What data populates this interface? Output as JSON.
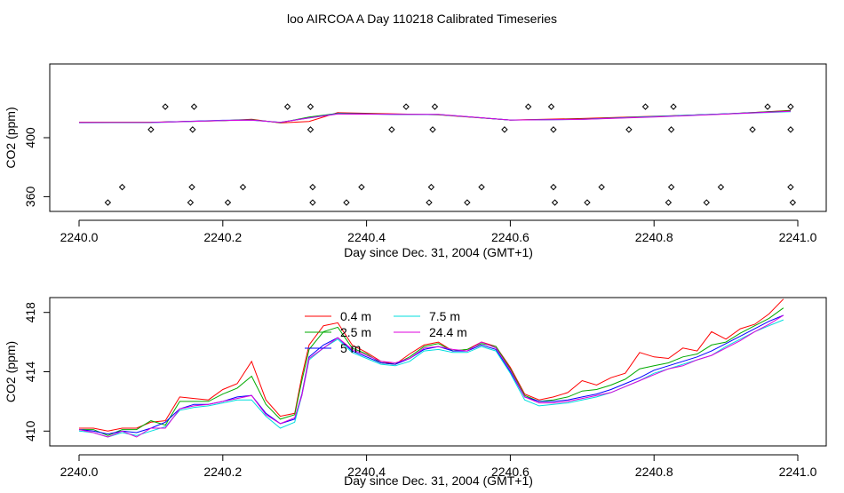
{
  "title": "loo AIRCOA A  Day 110218  Calibrated Timeseries",
  "series_colors": {
    "0.4 m": "#ff0000",
    "2.5 m": "#00aa00",
    "5 m": "#0000ff",
    "7.5 m": "#00dddd",
    "24.4 m": "#dd00dd"
  },
  "chart_data": [
    {
      "type": "line",
      "panel": "top",
      "xlabel": "Day since Dec. 31, 2004 (GMT+1)",
      "ylabel": "CO2 (ppm)",
      "xlim": [
        2240.0,
        2241.0
      ],
      "ylim": [
        350,
        450
      ],
      "x_ticks": [
        2240.0,
        2240.2,
        2240.4,
        2240.6,
        2240.8,
        2241.0
      ],
      "x_tick_labels": [
        "2240.0",
        "2240.2",
        "2240.4",
        "2240.6",
        "2240.8",
        "2241.0"
      ],
      "y_ticks": [
        360,
        400
      ],
      "y_tick_labels": [
        "360",
        "400"
      ],
      "grid": false,
      "series": [
        {
          "name": "0.4 m",
          "x": [
            2240.0,
            2240.1,
            2240.2,
            2240.24,
            2240.28,
            2240.32,
            2240.36,
            2240.45,
            2240.5,
            2240.6,
            2240.7,
            2240.8,
            2240.9,
            2240.99
          ],
          "y": [
            410.5,
            410.5,
            411.5,
            412.5,
            410.0,
            411.0,
            417.0,
            416.0,
            415.5,
            412.0,
            413.0,
            414.5,
            416.0,
            418.5
          ]
        },
        {
          "name": "2.5 m",
          "x": [
            2240.0,
            2240.1,
            2240.2,
            2240.24,
            2240.28,
            2240.32,
            2240.36,
            2240.45,
            2240.5,
            2240.6,
            2240.7,
            2240.8,
            2240.9,
            2240.99
          ],
          "y": [
            410.3,
            410.4,
            411.6,
            412.2,
            410.2,
            414.0,
            416.5,
            415.8,
            415.6,
            412.0,
            412.6,
            414.4,
            416.2,
            418.3
          ]
        },
        {
          "name": "5 m",
          "x": [
            2240.0,
            2240.1,
            2240.2,
            2240.24,
            2240.28,
            2240.32,
            2240.36,
            2240.45,
            2240.5,
            2240.6,
            2240.7,
            2240.8,
            2240.9,
            2240.99
          ],
          "y": [
            410.2,
            410.3,
            411.8,
            412.0,
            410.4,
            413.5,
            416.3,
            415.7,
            415.7,
            412.0,
            412.5,
            414.3,
            416.2,
            417.9
          ]
        },
        {
          "name": "7.5 m",
          "x": [
            2240.0,
            2240.1,
            2240.2,
            2240.24,
            2240.28,
            2240.32,
            2240.36,
            2240.45,
            2240.5,
            2240.6,
            2240.7,
            2240.8,
            2240.9,
            2240.99
          ],
          "y": [
            410.2,
            410.2,
            411.7,
            411.8,
            410.5,
            413.3,
            416.2,
            415.7,
            415.7,
            412.0,
            412.4,
            414.2,
            416.1,
            417.6
          ]
        },
        {
          "name": "24.4 m",
          "x": [
            2240.0,
            2240.1,
            2240.2,
            2240.24,
            2240.28,
            2240.32,
            2240.36,
            2240.45,
            2240.5,
            2240.6,
            2240.7,
            2240.8,
            2240.9,
            2240.99
          ],
          "y": [
            410.3,
            410.3,
            411.6,
            411.9,
            410.4,
            413.4,
            416.0,
            415.8,
            415.8,
            412.0,
            412.4,
            414.0,
            416.0,
            417.9
          ]
        }
      ],
      "point_series": [
        {
          "y": 356,
          "x": [
            2240.04,
            2240.155,
            2240.207,
            2240.325,
            2240.372,
            2240.487,
            2240.54,
            2240.662,
            2240.707,
            2240.82,
            2240.873,
            2240.993
          ]
        },
        {
          "y": 366.5,
          "x": [
            2240.06,
            2240.157,
            2240.228,
            2240.325,
            2240.393,
            2240.49,
            2240.56,
            2240.66,
            2240.727,
            2240.824,
            2240.893,
            2240.99
          ]
        },
        {
          "y": 405.5,
          "x": [
            2240.1,
            2240.158,
            2240.322,
            2240.435,
            2240.492,
            2240.592,
            2240.66,
            2240.765,
            2240.824,
            2240.937,
            2240.99
          ]
        },
        {
          "y": 421,
          "x": [
            2240.12,
            2240.16,
            2240.29,
            2240.322,
            2240.455,
            2240.495,
            2240.625,
            2240.657,
            2240.788,
            2240.827,
            2240.958,
            2240.99
          ]
        }
      ]
    },
    {
      "type": "line",
      "panel": "bottom",
      "xlabel": "Day since Dec. 31, 2004 (GMT+1)",
      "ylabel": "CO2 (ppm)",
      "xlim": [
        2240.0,
        2241.0
      ],
      "ylim": [
        409,
        419
      ],
      "x_ticks": [
        2240.0,
        2240.2,
        2240.4,
        2240.6,
        2240.8,
        2241.0
      ],
      "x_tick_labels": [
        "2240.0",
        "2240.2",
        "2240.4",
        "2240.6",
        "2240.8",
        "2241.0"
      ],
      "y_ticks": [
        410,
        414,
        418
      ],
      "y_tick_labels": [
        "410",
        "414",
        "418"
      ],
      "grid": false,
      "legend_position": "top-center",
      "base": {
        "x": [
          2240.0,
          2240.02,
          2240.04,
          2240.06,
          2240.08,
          2240.1,
          2240.12,
          2240.14,
          2240.16,
          2240.18,
          2240.2,
          2240.22,
          2240.24,
          2240.26,
          2240.28,
          2240.3,
          2240.31,
          2240.32,
          2240.34,
          2240.36,
          2240.38,
          2240.4,
          2240.42,
          2240.44,
          2240.46,
          2240.48,
          2240.5,
          2240.52,
          2240.54,
          2240.56,
          2240.58,
          2240.6,
          2240.62,
          2240.64,
          2240.66,
          2240.68,
          2240.7,
          2240.72,
          2240.74,
          2240.76,
          2240.78,
          2240.8,
          2240.82,
          2240.84,
          2240.86,
          2240.88,
          2240.9,
          2240.92,
          2240.94,
          2240.96,
          2240.98
        ],
        "y": [
          410.1,
          410.0,
          409.8,
          410.0,
          409.9,
          410.2,
          410.6,
          411.5,
          411.8,
          411.8,
          412.0,
          412.3,
          412.4,
          411.2,
          410.5,
          410.8,
          412.5,
          415.0,
          415.8,
          416.3,
          415.4,
          415.0,
          414.6,
          414.5,
          414.9,
          415.5,
          415.7,
          415.4,
          415.4,
          415.8,
          415.5,
          414.0,
          412.3,
          412.0,
          412.0,
          412.1,
          412.3,
          412.5,
          412.8,
          413.2,
          413.6,
          414.1,
          414.4,
          414.7,
          415.0,
          415.4,
          415.9,
          416.4,
          416.9,
          417.4,
          417.8
        ]
      },
      "series": [
        {
          "name": "0.4 m",
          "offsets": [
            0.1,
            0.2,
            0.2,
            0.2,
            0.3,
            0.4,
            0.1,
            0.8,
            0.4,
            0.3,
            0.8,
            0.9,
            2.3,
            0.9,
            0.5,
            0.4,
            1.2,
            0.8,
            1.3,
            1.0,
            0.4,
            0.3,
            0.1,
            0.0,
            0.3,
            0.3,
            0.3,
            0.0,
            0.1,
            0.2,
            0.2,
            0.3,
            0.2,
            0.1,
            0.3,
            0.5,
            1.1,
            0.6,
            0.8,
            0.7,
            1.7,
            0.9,
            0.5,
            0.9,
            0.4,
            1.3,
            0.3,
            0.5,
            0.3,
            0.5,
            1.1
          ]
        },
        {
          "name": "2.5 m",
          "offsets": [
            0.0,
            0.1,
            -0.1,
            0.1,
            0.2,
            0.5,
            -0.2,
            0.5,
            0.2,
            0.2,
            0.5,
            0.6,
            1.3,
            0.6,
            0.3,
            0.3,
            0.9,
            0.5,
            0.9,
            0.7,
            0.2,
            0.2,
            0.0,
            0.0,
            0.1,
            0.2,
            0.2,
            0.0,
            0.1,
            0.1,
            0.2,
            0.2,
            0.1,
            0.0,
            0.1,
            0.2,
            0.4,
            0.3,
            0.3,
            0.3,
            0.6,
            0.3,
            0.2,
            0.3,
            0.2,
            0.4,
            0.1,
            0.2,
            0.2,
            0.2,
            0.5
          ]
        },
        {
          "name": "5 m",
          "offsets": [
            0.0,
            0.0,
            0.0,
            0.0,
            0.0,
            0.0,
            0.0,
            0.0,
            0.0,
            0.0,
            0.0,
            0.0,
            0.0,
            0.0,
            0.0,
            0.0,
            0.0,
            0.0,
            0.0,
            0.0,
            0.0,
            0.0,
            0.0,
            0.0,
            0.0,
            0.0,
            0.0,
            0.0,
            0.0,
            0.0,
            0.0,
            0.0,
            0.0,
            0.0,
            0.0,
            0.0,
            0.0,
            0.0,
            0.0,
            0.0,
            0.0,
            0.0,
            0.0,
            0.0,
            0.0,
            0.0,
            0.0,
            0.0,
            0.0,
            0.0,
            0.0
          ]
        },
        {
          "name": "7.5 m",
          "offsets": [
            -0.1,
            -0.1,
            -0.2,
            -0.1,
            -0.2,
            -0.2,
            -0.3,
            -0.1,
            -0.2,
            -0.1,
            -0.1,
            -0.2,
            -0.3,
            -0.2,
            -0.3,
            -0.2,
            -0.1,
            -0.2,
            -0.2,
            -0.1,
            -0.1,
            -0.1,
            -0.1,
            -0.1,
            -0.2,
            -0.1,
            -0.2,
            -0.1,
            -0.1,
            -0.1,
            -0.1,
            -0.1,
            -0.2,
            -0.3,
            -0.2,
            -0.2,
            -0.2,
            -0.2,
            -0.2,
            -0.2,
            -0.2,
            -0.2,
            -0.2,
            -0.2,
            -0.2,
            -0.3,
            -0.2,
            -0.2,
            -0.2,
            -0.3,
            -0.3
          ]
        },
        {
          "name": "24.4 m",
          "offsets": [
            0.0,
            -0.1,
            -0.2,
            0.0,
            -0.3,
            0.0,
            -0.4,
            0.0,
            -0.1,
            0.0,
            0.0,
            -0.1,
            0.0,
            -0.1,
            0.0,
            0.1,
            -0.1,
            -0.1,
            -0.2,
            0.0,
            0.1,
            0.1,
            0.1,
            0.1,
            0.0,
            0.1,
            0.0,
            0.1,
            0.0,
            0.2,
            0.1,
            0.1,
            0.0,
            -0.1,
            -0.1,
            -0.1,
            -0.1,
            -0.1,
            -0.2,
            -0.2,
            -0.2,
            -0.3,
            -0.2,
            -0.3,
            -0.2,
            -0.3,
            -0.3,
            -0.3,
            -0.2,
            -0.2,
            0.0
          ]
        }
      ],
      "legend": [
        "0.4 m",
        "2.5 m",
        "5 m",
        "7.5 m",
        "24.4 m"
      ]
    }
  ]
}
